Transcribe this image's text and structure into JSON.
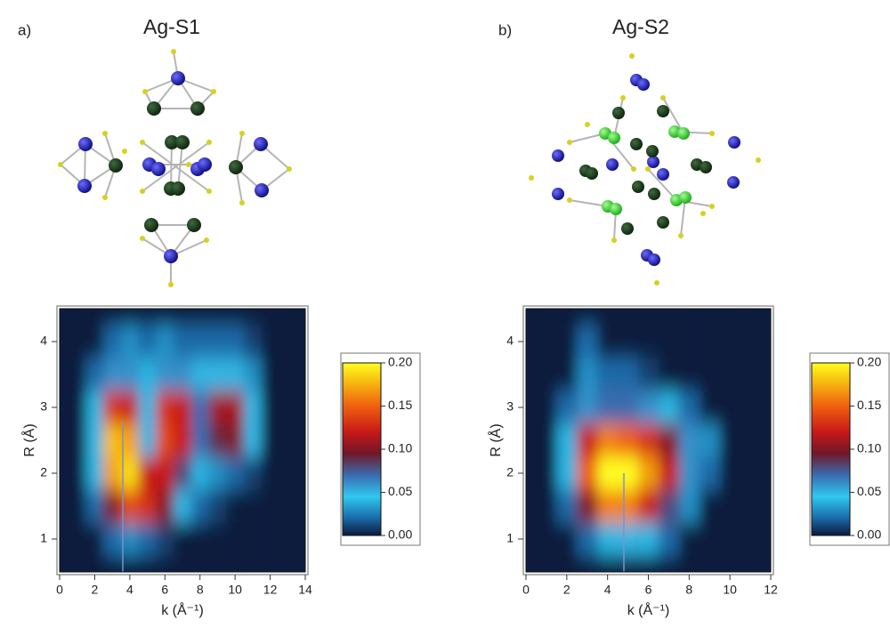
{
  "chart_data": [
    {
      "type": "heatmap",
      "panel_label": "a)",
      "title": "Ag-S1",
      "xlabel": "k (Å⁻¹)",
      "ylabel": "R (Å)",
      "x": [
        0,
        1,
        2,
        3,
        4,
        5,
        6,
        7,
        8,
        9,
        10,
        11,
        12,
        13,
        14
      ],
      "y": [
        0.5,
        1.0,
        1.5,
        2.0,
        2.5,
        3.0,
        3.5,
        4.0,
        4.5
      ],
      "z": [
        [
          0,
          0,
          0,
          0,
          0,
          0,
          0,
          0,
          0,
          0,
          0,
          0,
          0,
          0,
          0
        ],
        [
          0,
          0,
          0,
          0.02,
          0.03,
          0.02,
          0.01,
          0,
          0,
          0,
          0,
          0,
          0,
          0,
          0
        ],
        [
          0,
          0,
          0.02,
          0.1,
          0.14,
          0.13,
          0.1,
          0.05,
          0.02,
          0.01,
          0,
          0,
          0,
          0,
          0
        ],
        [
          0,
          0,
          0.04,
          0.17,
          0.19,
          0.12,
          0.12,
          0.08,
          0.04,
          0.03,
          0.02,
          0.01,
          0,
          0,
          0
        ],
        [
          0,
          0,
          0.05,
          0.18,
          0.17,
          0.05,
          0.14,
          0.12,
          0.07,
          0.09,
          0.1,
          0.05,
          0,
          0,
          0
        ],
        [
          0,
          0,
          0.04,
          0.13,
          0.12,
          0.05,
          0.13,
          0.12,
          0.07,
          0.11,
          0.11,
          0.05,
          0,
          0,
          0
        ],
        [
          0,
          0,
          0.02,
          0.06,
          0.06,
          0.04,
          0.06,
          0.06,
          0.05,
          0.05,
          0.05,
          0.03,
          0,
          0,
          0
        ],
        [
          0,
          0,
          0,
          0.02,
          0.03,
          0.02,
          0.03,
          0.02,
          0.02,
          0.02,
          0.02,
          0.01,
          0,
          0,
          0
        ],
        [
          0,
          0,
          0,
          0,
          0,
          0,
          0,
          0,
          0,
          0,
          0,
          0,
          0,
          0,
          0
        ]
      ],
      "xlim": [
        0,
        14
      ],
      "ylim": [
        0.5,
        4.5
      ],
      "xticks": [
        0,
        2,
        4,
        6,
        8,
        10,
        12,
        14
      ],
      "yticks": [
        1,
        2,
        3,
        4
      ],
      "marker_line": {
        "x": 3.6,
        "y": [
          0.5,
          2.8
        ],
        "color": "#7f8fd0"
      },
      "colorbar_ticks": [
        {
          "value": 0,
          "label": "0.00"
        },
        {
          "value": 0.05,
          "label": "0.05"
        },
        {
          "value": 0.1,
          "label": "0.10"
        },
        {
          "value": 0.15,
          "label": "0.15"
        },
        {
          "value": 0.2,
          "label": "0.20"
        }
      ],
      "colorscale": [
        {
          "value": 0,
          "color": "#0b1a3c"
        },
        {
          "value": 0.02,
          "color": "#1a6aa8"
        },
        {
          "value": 0.045,
          "color": "#30c8f0"
        },
        {
          "value": 0.07,
          "color": "#3a6cb0"
        },
        {
          "value": 0.095,
          "color": "#701828"
        },
        {
          "value": 0.12,
          "color": "#c81818"
        },
        {
          "value": 0.15,
          "color": "#f06010"
        },
        {
          "value": 0.18,
          "color": "#f8c010"
        },
        {
          "value": 0.2,
          "color": "#ffff20"
        }
      ]
    },
    {
      "type": "heatmap",
      "panel_label": "b)",
      "title": "Ag-S2",
      "xlabel": "k (Å⁻¹)",
      "ylabel": "R (Å)",
      "x": [
        0,
        1,
        2,
        3,
        4,
        5,
        6,
        7,
        8,
        9,
        10,
        11,
        12
      ],
      "y": [
        0.5,
        1.0,
        1.5,
        2.0,
        2.5,
        3.0,
        3.5,
        4.0,
        4.5
      ],
      "z": [
        [
          0,
          0,
          0,
          0,
          0,
          0,
          0,
          0,
          0,
          0,
          0,
          0,
          0
        ],
        [
          0,
          0,
          0,
          0.02,
          0.04,
          0.05,
          0.04,
          0.02,
          0,
          0,
          0,
          0,
          0
        ],
        [
          0,
          0,
          0.02,
          0.1,
          0.16,
          0.16,
          0.12,
          0.08,
          0.03,
          0,
          0,
          0,
          0
        ],
        [
          0,
          0,
          0.04,
          0.15,
          0.2,
          0.2,
          0.17,
          0.12,
          0.06,
          0.02,
          0,
          0,
          0
        ],
        [
          0,
          0,
          0.04,
          0.12,
          0.16,
          0.15,
          0.13,
          0.1,
          0.06,
          0.03,
          0,
          0,
          0
        ],
        [
          0,
          0,
          0.02,
          0.06,
          0.07,
          0.07,
          0.06,
          0.04,
          0.02,
          0,
          0,
          0,
          0
        ],
        [
          0,
          0,
          0,
          0.03,
          0.02,
          0.02,
          0.01,
          0,
          0,
          0,
          0,
          0,
          0
        ],
        [
          0,
          0,
          0,
          0.02,
          0,
          0,
          0,
          0,
          0,
          0,
          0,
          0,
          0
        ],
        [
          0,
          0,
          0,
          0,
          0,
          0,
          0,
          0,
          0,
          0,
          0,
          0,
          0
        ]
      ],
      "xlim": [
        0,
        12
      ],
      "ylim": [
        0.5,
        4.5
      ],
      "xticks": [
        0,
        2,
        4,
        6,
        8,
        10,
        12
      ],
      "yticks": [
        1,
        2,
        3,
        4
      ],
      "marker_line": {
        "x": 4.8,
        "y": [
          0.5,
          2.0
        ],
        "color": "#7f8fd0"
      },
      "colorbar_ticks": [
        {
          "value": 0,
          "label": "0.00"
        },
        {
          "value": 0.05,
          "label": "0.05"
        },
        {
          "value": 0.1,
          "label": "0.10"
        },
        {
          "value": 0.15,
          "label": "0.15"
        },
        {
          "value": 0.2,
          "label": "0.20"
        }
      ],
      "colorscale": [
        {
          "value": 0,
          "color": "#0b1a3c"
        },
        {
          "value": 0.02,
          "color": "#1a6aa8"
        },
        {
          "value": 0.045,
          "color": "#30c8f0"
        },
        {
          "value": 0.07,
          "color": "#3a6cb0"
        },
        {
          "value": 0.095,
          "color": "#701828"
        },
        {
          "value": 0.12,
          "color": "#c81818"
        },
        {
          "value": 0.15,
          "color": "#f06010"
        },
        {
          "value": 0.18,
          "color": "#f8c010"
        },
        {
          "value": 0.2,
          "color": "#ffff20"
        }
      ]
    }
  ]
}
